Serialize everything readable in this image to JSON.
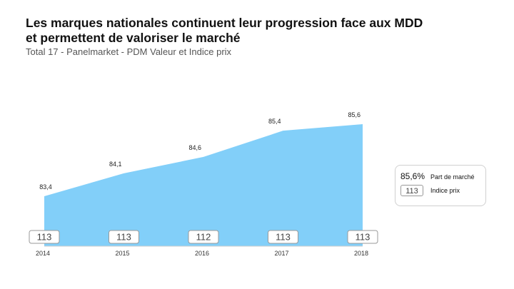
{
  "header": {
    "title": "Les marques nationales continuent leur progression face aux MDD et permettent de valoriser le marché",
    "subtitle": "Total 17 - Panelmarket - PDM Valeur et Indice prix"
  },
  "legend": {
    "value_example": "85,6%",
    "value_label": "Part de marché",
    "index_example": "113",
    "index_label": "Indice prix"
  },
  "colors": {
    "area_fill": "#82cff9",
    "index_box_border": "#999999"
  },
  "chart_data": {
    "type": "area",
    "categories": [
      "2014",
      "2015",
      "2016",
      "2017",
      "2018"
    ],
    "series": [
      {
        "values": [
          83.4,
          84.1,
          84.6,
          85.4,
          85.6
        ],
        "labels": [
          "83,4",
          "84,1",
          "84,6",
          "85,4",
          "85,6"
        ]
      }
    ],
    "price_index": [
      113,
      113,
      112,
      113,
      113
    ],
    "title": "Les marques nationales continuent leur progression face aux MDD et permettent de valoriser le marché",
    "subtitle": "Total 17 - Panelmarket - PDM Valeur et Indice prix",
    "xlabel": "",
    "ylabel": "",
    "grid": false
  }
}
